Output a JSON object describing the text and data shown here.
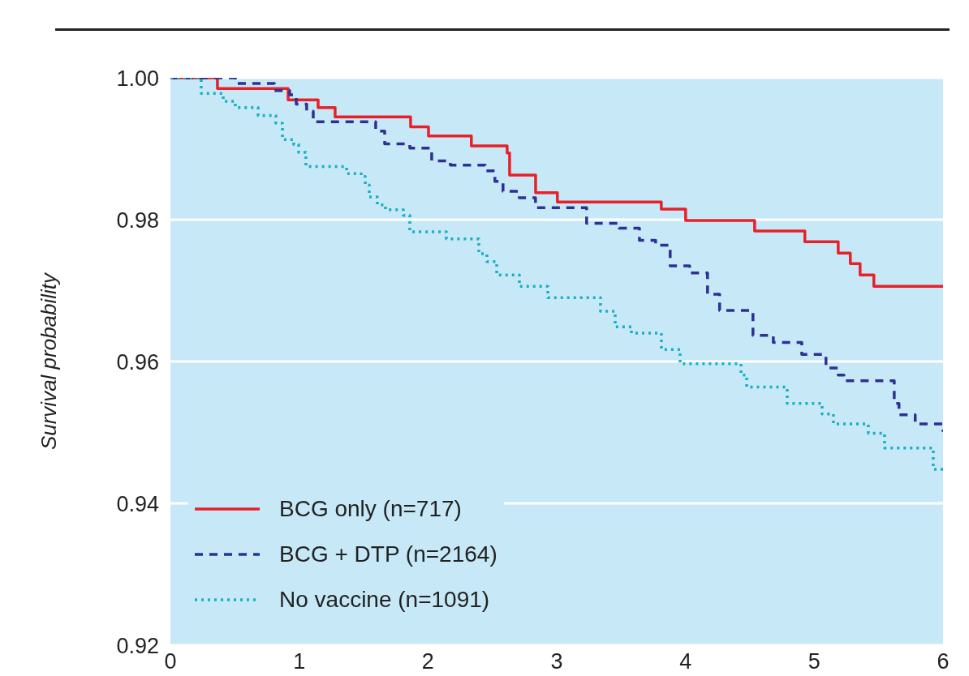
{
  "chart_data": {
    "type": "step",
    "ylabel": "Survival probability",
    "xlim": [
      0,
      6
    ],
    "xticks": [
      0,
      1,
      2,
      3,
      4,
      5,
      6
    ],
    "ylim": [
      0.92,
      1.0
    ],
    "yticks": [
      {
        "value": 0.92,
        "label": "0.92"
      },
      {
        "value": 0.94,
        "label": "0.94"
      },
      {
        "value": 0.96,
        "label": "0.96"
      },
      {
        "value": 0.98,
        "label": "0.98"
      },
      {
        "value": 1.0,
        "label": "1.00"
      }
    ],
    "grid": "y",
    "legend": "bottom left",
    "marker": "none",
    "series": [
      {
        "name": "BCG only (n=717)",
        "color": "#e8202a",
        "line_style": "solid",
        "x": [
          0,
          0.365,
          0.914,
          1.147,
          1.279,
          1.865,
          2.004,
          2.337,
          2.615,
          2.634,
          2.836,
          3.005,
          3.812,
          4.001,
          4.537,
          4.927,
          5.186,
          5.28,
          5.356,
          5.463,
          6
        ],
        "values": [
          1.0,
          0.9985,
          0.9969,
          0.9958,
          0.9945,
          0.9931,
          0.9918,
          0.9904,
          0.9894,
          0.9863,
          0.9838,
          0.9825,
          0.9815,
          0.9799,
          0.9784,
          0.9769,
          0.9753,
          0.9738,
          0.9722,
          0.9706,
          0.9706
        ]
      },
      {
        "name": "BCG + DTP (n=2164)",
        "color": "#2e3192",
        "line_style": "dashed",
        "x": [
          0,
          0.504,
          0.807,
          0.926,
          0.977,
          1.058,
          1.109,
          1.594,
          1.664,
          1.859,
          2.029,
          2.174,
          2.445,
          2.52,
          2.583,
          2.709,
          2.835,
          3.232,
          3.484,
          3.642,
          3.768,
          3.881,
          4.032,
          4.171,
          4.265,
          4.524,
          4.682,
          4.903,
          5.091,
          5.186,
          5.23,
          5.621,
          5.658,
          5.784,
          6
        ],
        "values": [
          1.0,
          0.9992,
          0.9982,
          0.9976,
          0.9963,
          0.9953,
          0.9938,
          0.9925,
          0.9907,
          0.9901,
          0.9883,
          0.9877,
          0.9869,
          0.9854,
          0.984,
          0.9831,
          0.9817,
          0.9795,
          0.9788,
          0.9771,
          0.9764,
          0.9735,
          0.9725,
          0.9695,
          0.9672,
          0.9637,
          0.9627,
          0.961,
          0.9591,
          0.9581,
          0.9573,
          0.9541,
          0.9525,
          0.9512,
          0.9501
        ]
      },
      {
        "name": "No vaccine (n=1091)",
        "color": "#1ab0c0",
        "line_style": "dotted",
        "x": [
          0,
          0.239,
          0.41,
          0.504,
          0.681,
          0.819,
          0.87,
          0.958,
          0.996,
          1.052,
          1.368,
          1.481,
          1.513,
          1.544,
          1.607,
          1.67,
          1.809,
          1.859,
          2.143,
          2.395,
          2.458,
          2.534,
          2.71,
          2.931,
          3.34,
          3.454,
          3.58,
          3.813,
          3.958,
          4.431,
          4.475,
          4.79,
          5.061,
          5.149,
          5.42,
          5.546,
          5.924,
          6
        ],
        "values": [
          1.0,
          0.9978,
          0.9967,
          0.9958,
          0.9947,
          0.9936,
          0.9913,
          0.9906,
          0.9895,
          0.9875,
          0.9865,
          0.9861,
          0.9849,
          0.9832,
          0.9821,
          0.9814,
          0.9806,
          0.9783,
          0.9773,
          0.9752,
          0.9741,
          0.9722,
          0.9706,
          0.969,
          0.9671,
          0.9649,
          0.964,
          0.9617,
          0.9597,
          0.9581,
          0.9564,
          0.9541,
          0.9526,
          0.9512,
          0.9499,
          0.9478,
          0.9448,
          0.9443
        ]
      }
    ]
  }
}
